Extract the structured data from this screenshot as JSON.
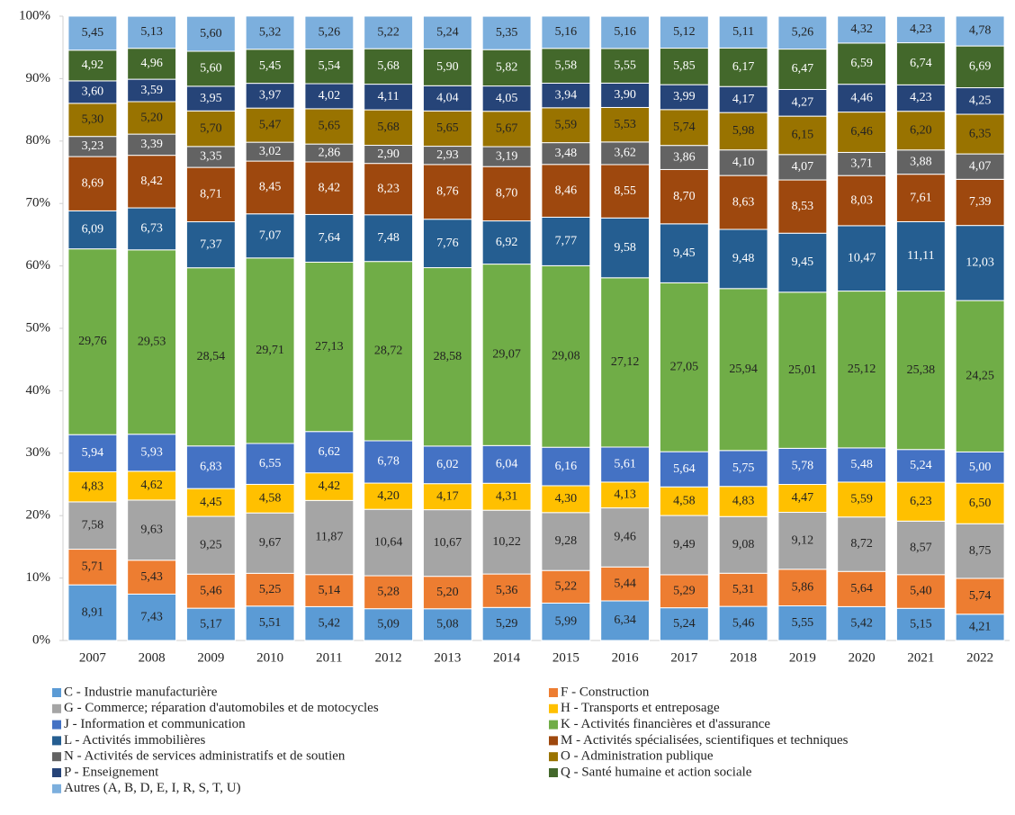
{
  "chart_data": {
    "type": "stacked_bar",
    "categories": [
      "2007",
      "2008",
      "2009",
      "2010",
      "2011",
      "2012",
      "2013",
      "2014",
      "2015",
      "2016",
      "2017",
      "2018",
      "2019",
      "2020",
      "2021",
      "2022"
    ],
    "ylim": [
      0,
      100
    ],
    "yticks": [
      {
        "value": 0,
        "label": "0%"
      },
      {
        "value": 10,
        "label": "10%"
      },
      {
        "value": 20,
        "label": "20%"
      },
      {
        "value": 30,
        "label": "30%"
      },
      {
        "value": 40,
        "label": "40%"
      },
      {
        "value": 50,
        "label": "50%"
      },
      {
        "value": 60,
        "label": "60%"
      },
      {
        "value": 70,
        "label": "70%"
      },
      {
        "value": 80,
        "label": "80%"
      },
      {
        "value": 90,
        "label": "90%"
      },
      {
        "value": 100,
        "label": "100%"
      }
    ],
    "legend": "bottom",
    "series": [
      {
        "name": "C - Industrie manufacturière",
        "color": "#5b9bd5",
        "values": [
          8.91,
          7.43,
          5.17,
          5.51,
          5.42,
          5.09,
          5.08,
          5.29,
          5.99,
          6.34,
          5.24,
          5.46,
          5.55,
          5.42,
          5.15,
          4.21
        ],
        "value_labels": [
          "8,91",
          "7,43",
          "5,17",
          "5,51",
          "5,42",
          "5,09",
          "5,08",
          "5,29",
          "5,99",
          "6,34",
          "5,24",
          "5,46",
          "5,55",
          "5,42",
          "5,15",
          "4,21"
        ]
      },
      {
        "name": "F - Construction",
        "color": "#ed7d31",
        "values": [
          5.71,
          5.43,
          5.46,
          5.25,
          5.14,
          5.28,
          5.2,
          5.36,
          5.22,
          5.44,
          5.29,
          5.31,
          5.86,
          5.64,
          5.4,
          5.74
        ],
        "value_labels": [
          "5,71",
          "5,43",
          "5,46",
          "5,25",
          "5,14",
          "5,28",
          "5,20",
          "5,36",
          "5,22",
          "5,44",
          "5,29",
          "5,31",
          "5,86",
          "5,64",
          "5,40",
          "5,74"
        ]
      },
      {
        "name": "G - Commerce; réparation d'automobiles et de motocycles",
        "color": "#a5a5a5",
        "values": [
          7.58,
          9.63,
          9.25,
          9.67,
          11.87,
          10.64,
          10.67,
          10.22,
          9.28,
          9.46,
          9.49,
          9.08,
          9.12,
          8.72,
          8.57,
          8.75
        ],
        "value_labels": [
          "7,58",
          "9,63",
          "9,25",
          "9,67",
          "11,87",
          "10,64",
          "10,67",
          "10,22",
          "9,28",
          "9,46",
          "9,49",
          "9,08",
          "9,12",
          "8,72",
          "8,57",
          "8,75"
        ]
      },
      {
        "name": "H - Transports et entreposage",
        "color": "#ffc000",
        "values": [
          4.83,
          4.62,
          4.45,
          4.58,
          4.42,
          4.2,
          4.17,
          4.31,
          4.3,
          4.13,
          4.58,
          4.83,
          4.47,
          5.59,
          6.23,
          6.5
        ],
        "value_labels": [
          "4,83",
          "4,62",
          "4,45",
          "4,58",
          "4,42",
          "4,20",
          "4,17",
          "4,31",
          "4,30",
          "4,13",
          "4,58",
          "4,83",
          "4,47",
          "5,59",
          "6,23",
          "6,50"
        ]
      },
      {
        "name": "J - Information et communication",
        "color": "#4472c4",
        "values": [
          5.94,
          5.93,
          6.83,
          6.55,
          6.62,
          6.78,
          6.02,
          6.04,
          6.16,
          5.61,
          5.64,
          5.75,
          5.78,
          5.48,
          5.24,
          5.0
        ],
        "value_labels": [
          "5,94",
          "5,93",
          "6,83",
          "6,55",
          "6,62",
          "6,78",
          "6,02",
          "6,04",
          "6,16",
          "5,61",
          "5,64",
          "5,75",
          "5,78",
          "5,48",
          "5,24",
          "5,00"
        ]
      },
      {
        "name": "K - Activités financières et d'assurance",
        "color": "#70ad47",
        "values": [
          29.76,
          29.53,
          28.54,
          29.71,
          27.13,
          28.72,
          28.58,
          29.07,
          29.08,
          27.12,
          27.05,
          25.94,
          25.01,
          25.12,
          25.38,
          24.25
        ],
        "value_labels": [
          "29,76",
          "29,53",
          "28,54",
          "29,71",
          "27,13",
          "28,72",
          "28,58",
          "29,07",
          "29,08",
          "27,12",
          "27,05",
          "25,94",
          "25,01",
          "25,12",
          "25,38",
          "24,25"
        ]
      },
      {
        "name": "L - Activités immobilières",
        "color": "#255e91",
        "values": [
          6.09,
          6.73,
          7.37,
          7.07,
          7.64,
          7.48,
          7.76,
          6.92,
          7.77,
          9.58,
          9.45,
          9.48,
          9.45,
          10.47,
          11.11,
          12.03
        ],
        "value_labels": [
          "6,09",
          "6,73",
          "7,37",
          "7,07",
          "7,64",
          "7,48",
          "7,76",
          "6,92",
          "7,77",
          "9,58",
          "9,45",
          "9,48",
          "9,45",
          "10,47",
          "11,11",
          "12,03"
        ]
      },
      {
        "name": "M - Activités spécialisées, scientifiques et techniques",
        "color": "#9e480e",
        "values": [
          8.69,
          8.42,
          8.71,
          8.45,
          8.42,
          8.23,
          8.76,
          8.7,
          8.46,
          8.55,
          8.7,
          8.63,
          8.53,
          8.03,
          7.61,
          7.39
        ],
        "value_labels": [
          "8,69",
          "8,42",
          "8,71",
          "8,45",
          "8,42",
          "8,23",
          "8,76",
          "8,70",
          "8,46",
          "8,55",
          "8,70",
          "8,63",
          "8,53",
          "8,03",
          "7,61",
          "7,39"
        ]
      },
      {
        "name": "N - Activités de services administratifs et de soutien",
        "color": "#636363",
        "values": [
          3.23,
          3.39,
          3.35,
          3.02,
          2.86,
          2.9,
          2.93,
          3.19,
          3.48,
          3.62,
          3.86,
          4.1,
          4.07,
          3.71,
          3.88,
          4.07
        ],
        "value_labels": [
          "3,23",
          "3,39",
          "3,35",
          "3,02",
          "2,86",
          "2,90",
          "2,93",
          "3,19",
          "3,48",
          "3,62",
          "3,86",
          "4,10",
          "4,07",
          "3,71",
          "3,88",
          "4,07"
        ]
      },
      {
        "name": "O - Administration publique",
        "color": "#997300",
        "values": [
          5.3,
          5.2,
          5.7,
          5.47,
          5.65,
          5.68,
          5.65,
          5.67,
          5.59,
          5.53,
          5.74,
          5.98,
          6.15,
          6.46,
          6.2,
          6.35
        ],
        "value_labels": [
          "5,30",
          "5,20",
          "5,70",
          "5,47",
          "5,65",
          "5,68",
          "5,65",
          "5,67",
          "5,59",
          "5,53",
          "5,74",
          "5,98",
          "6,15",
          "6,46",
          "6,20",
          "6,35"
        ]
      },
      {
        "name": "P - Enseignement",
        "color": "#264478",
        "values": [
          3.6,
          3.59,
          3.95,
          3.97,
          4.02,
          4.11,
          4.04,
          4.05,
          3.94,
          3.9,
          3.99,
          4.17,
          4.27,
          4.46,
          4.23,
          4.25
        ],
        "value_labels": [
          "3,60",
          "3,59",
          "3,95",
          "3,97",
          "4,02",
          "4,11",
          "4,04",
          "4,05",
          "3,94",
          "3,90",
          "3,99",
          "4,17",
          "4,27",
          "4,46",
          "4,23",
          "4,25"
        ]
      },
      {
        "name": "Q - Santé humaine et action sociale",
        "color": "#43682b",
        "values": [
          4.92,
          4.96,
          5.6,
          5.45,
          5.54,
          5.68,
          5.9,
          5.82,
          5.58,
          5.55,
          5.85,
          6.17,
          6.47,
          6.59,
          6.74,
          6.69
        ],
        "value_labels": [
          "4,92",
          "4,96",
          "5,60",
          "5,45",
          "5,54",
          "5,68",
          "5,90",
          "5,82",
          "5,58",
          "5,55",
          "5,85",
          "6,17",
          "6,47",
          "6,59",
          "6,74",
          "6,69"
        ]
      },
      {
        "name": "Autres (A, B, D, E, I, R, S, T, U)",
        "color": "#7cafdd",
        "values": [
          5.45,
          5.13,
          5.6,
          5.32,
          5.26,
          5.22,
          5.24,
          5.35,
          5.16,
          5.16,
          5.12,
          5.11,
          5.26,
          4.32,
          4.23,
          4.78
        ],
        "value_labels": [
          "5,45",
          "5,13",
          "5,60",
          "5,32",
          "5,26",
          "5,22",
          "5,24",
          "5,35",
          "5,16",
          "5,16",
          "5,12",
          "5,11",
          "5,26",
          "4,32",
          "4,23",
          "4,78"
        ]
      }
    ]
  }
}
